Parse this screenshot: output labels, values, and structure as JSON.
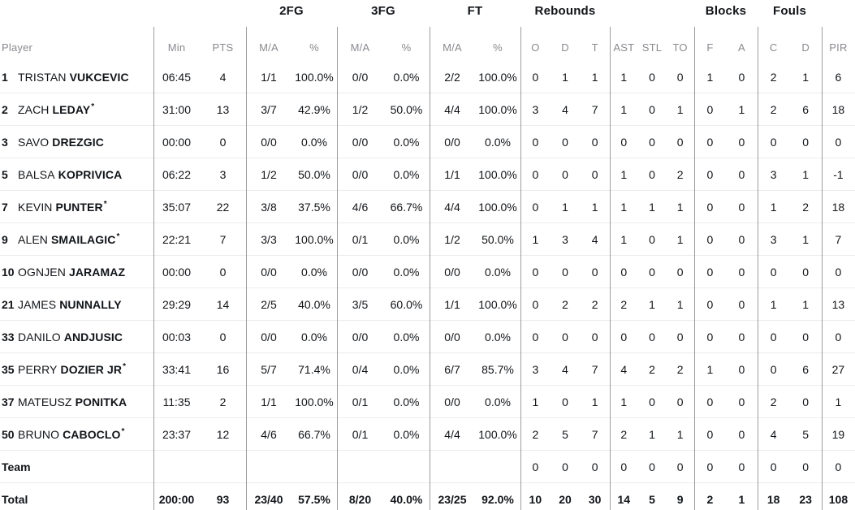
{
  "table": {
    "group_headers": [
      "2FG",
      "3FG",
      "FT",
      "Rebounds",
      "Blocks",
      "Fouls"
    ],
    "columns": [
      "Player",
      "Min",
      "PTS",
      "M/A",
      "%",
      "M/A",
      "%",
      "M/A",
      "%",
      "O",
      "D",
      "T",
      "AST",
      "STL",
      "TO",
      "F",
      "A",
      "C",
      "D",
      "PIR"
    ],
    "starter_mark": "*",
    "players": [
      {
        "number": "1",
        "first": "TRISTAN",
        "last": "VUKCEVIC",
        "starter": false,
        "min": "06:45",
        "pts": "4",
        "fg2ma": "1/1",
        "fg2pct": "100.0%",
        "fg3ma": "0/0",
        "fg3pct": "0.0%",
        "ftma": "2/2",
        "ftpct": "100.0%",
        "ro": "0",
        "rd": "1",
        "rt": "1",
        "ast": "1",
        "stl": "0",
        "to": "0",
        "bf": "1",
        "ba": "0",
        "fc": "2",
        "fd": "1",
        "pir": "6"
      },
      {
        "number": "2",
        "first": "ZACH",
        "last": "LEDAY",
        "starter": true,
        "min": "31:00",
        "pts": "13",
        "fg2ma": "3/7",
        "fg2pct": "42.9%",
        "fg3ma": "1/2",
        "fg3pct": "50.0%",
        "ftma": "4/4",
        "ftpct": "100.0%",
        "ro": "3",
        "rd": "4",
        "rt": "7",
        "ast": "1",
        "stl": "0",
        "to": "1",
        "bf": "0",
        "ba": "1",
        "fc": "2",
        "fd": "6",
        "pir": "18"
      },
      {
        "number": "3",
        "first": "SAVO",
        "last": "DREZGIC",
        "starter": false,
        "min": "00:00",
        "pts": "0",
        "fg2ma": "0/0",
        "fg2pct": "0.0%",
        "fg3ma": "0/0",
        "fg3pct": "0.0%",
        "ftma": "0/0",
        "ftpct": "0.0%",
        "ro": "0",
        "rd": "0",
        "rt": "0",
        "ast": "0",
        "stl": "0",
        "to": "0",
        "bf": "0",
        "ba": "0",
        "fc": "0",
        "fd": "0",
        "pir": "0"
      },
      {
        "number": "5",
        "first": "BALSA",
        "last": "KOPRIVICA",
        "starter": false,
        "min": "06:22",
        "pts": "3",
        "fg2ma": "1/2",
        "fg2pct": "50.0%",
        "fg3ma": "0/0",
        "fg3pct": "0.0%",
        "ftma": "1/1",
        "ftpct": "100.0%",
        "ro": "0",
        "rd": "0",
        "rt": "0",
        "ast": "1",
        "stl": "0",
        "to": "2",
        "bf": "0",
        "ba": "0",
        "fc": "3",
        "fd": "1",
        "pir": "-1"
      },
      {
        "number": "7",
        "first": "KEVIN",
        "last": "PUNTER",
        "starter": true,
        "min": "35:07",
        "pts": "22",
        "fg2ma": "3/8",
        "fg2pct": "37.5%",
        "fg3ma": "4/6",
        "fg3pct": "66.7%",
        "ftma": "4/4",
        "ftpct": "100.0%",
        "ro": "0",
        "rd": "1",
        "rt": "1",
        "ast": "1",
        "stl": "1",
        "to": "1",
        "bf": "0",
        "ba": "0",
        "fc": "1",
        "fd": "2",
        "pir": "18"
      },
      {
        "number": "9",
        "first": "ALEN",
        "last": "SMAILAGIC",
        "starter": true,
        "min": "22:21",
        "pts": "7",
        "fg2ma": "3/3",
        "fg2pct": "100.0%",
        "fg3ma": "0/1",
        "fg3pct": "0.0%",
        "ftma": "1/2",
        "ftpct": "50.0%",
        "ro": "1",
        "rd": "3",
        "rt": "4",
        "ast": "1",
        "stl": "0",
        "to": "1",
        "bf": "0",
        "ba": "0",
        "fc": "3",
        "fd": "1",
        "pir": "7"
      },
      {
        "number": "10",
        "first": "OGNJEN",
        "last": "JARAMAZ",
        "starter": false,
        "min": "00:00",
        "pts": "0",
        "fg2ma": "0/0",
        "fg2pct": "0.0%",
        "fg3ma": "0/0",
        "fg3pct": "0.0%",
        "ftma": "0/0",
        "ftpct": "0.0%",
        "ro": "0",
        "rd": "0",
        "rt": "0",
        "ast": "0",
        "stl": "0",
        "to": "0",
        "bf": "0",
        "ba": "0",
        "fc": "0",
        "fd": "0",
        "pir": "0"
      },
      {
        "number": "21",
        "first": "JAMES",
        "last": "NUNNALLY",
        "starter": false,
        "min": "29:29",
        "pts": "14",
        "fg2ma": "2/5",
        "fg2pct": "40.0%",
        "fg3ma": "3/5",
        "fg3pct": "60.0%",
        "ftma": "1/1",
        "ftpct": "100.0%",
        "ro": "0",
        "rd": "2",
        "rt": "2",
        "ast": "2",
        "stl": "1",
        "to": "1",
        "bf": "0",
        "ba": "0",
        "fc": "1",
        "fd": "1",
        "pir": "13"
      },
      {
        "number": "33",
        "first": "DANILO",
        "last": "ANDJUSIC",
        "starter": false,
        "min": "00:03",
        "pts": "0",
        "fg2ma": "0/0",
        "fg2pct": "0.0%",
        "fg3ma": "0/0",
        "fg3pct": "0.0%",
        "ftma": "0/0",
        "ftpct": "0.0%",
        "ro": "0",
        "rd": "0",
        "rt": "0",
        "ast": "0",
        "stl": "0",
        "to": "0",
        "bf": "0",
        "ba": "0",
        "fc": "0",
        "fd": "0",
        "pir": "0"
      },
      {
        "number": "35",
        "first": "PERRY",
        "last": "DOZIER JR",
        "starter": true,
        "min": "33:41",
        "pts": "16",
        "fg2ma": "5/7",
        "fg2pct": "71.4%",
        "fg3ma": "0/4",
        "fg3pct": "0.0%",
        "ftma": "6/7",
        "ftpct": "85.7%",
        "ro": "3",
        "rd": "4",
        "rt": "7",
        "ast": "4",
        "stl": "2",
        "to": "2",
        "bf": "1",
        "ba": "0",
        "fc": "0",
        "fd": "6",
        "pir": "27"
      },
      {
        "number": "37",
        "first": "MATEUSZ",
        "last": "PONITKA",
        "starter": false,
        "min": "11:35",
        "pts": "2",
        "fg2ma": "1/1",
        "fg2pct": "100.0%",
        "fg3ma": "0/1",
        "fg3pct": "0.0%",
        "ftma": "0/0",
        "ftpct": "0.0%",
        "ro": "1",
        "rd": "0",
        "rt": "1",
        "ast": "1",
        "stl": "0",
        "to": "0",
        "bf": "0",
        "ba": "0",
        "fc": "2",
        "fd": "0",
        "pir": "1"
      },
      {
        "number": "50",
        "first": "BRUNO",
        "last": "CABOCLO",
        "starter": true,
        "min": "23:37",
        "pts": "12",
        "fg2ma": "4/6",
        "fg2pct": "66.7%",
        "fg3ma": "0/1",
        "fg3pct": "0.0%",
        "ftma": "4/4",
        "ftpct": "100.0%",
        "ro": "2",
        "rd": "5",
        "rt": "7",
        "ast": "2",
        "stl": "1",
        "to": "1",
        "bf": "0",
        "ba": "0",
        "fc": "4",
        "fd": "5",
        "pir": "19"
      }
    ],
    "team_row": {
      "label": "Team",
      "min": "",
      "pts": "",
      "fg2ma": "",
      "fg2pct": "",
      "fg3ma": "",
      "fg3pct": "",
      "ftma": "",
      "ftpct": "",
      "ro": "0",
      "rd": "0",
      "rt": "0",
      "ast": "0",
      "stl": "0",
      "to": "0",
      "bf": "0",
      "ba": "0",
      "fc": "0",
      "fd": "0",
      "pir": "0"
    },
    "total_row": {
      "label": "Total",
      "min": "200:00",
      "pts": "93",
      "fg2ma": "23/40",
      "fg2pct": "57.5%",
      "fg3ma": "8/20",
      "fg3pct": "40.0%",
      "ftma": "23/25",
      "ftpct": "92.0%",
      "ro": "10",
      "rd": "20",
      "rt": "30",
      "ast": "14",
      "stl": "5",
      "to": "9",
      "bf": "2",
      "ba": "1",
      "fc": "18",
      "fd": "23",
      "pir": "108"
    },
    "colors": {
      "text": "#111418",
      "header_gray": "#8a8a90",
      "row_line": "#ececec",
      "divider": "#9c9c9c",
      "background": "#ffffff"
    }
  }
}
